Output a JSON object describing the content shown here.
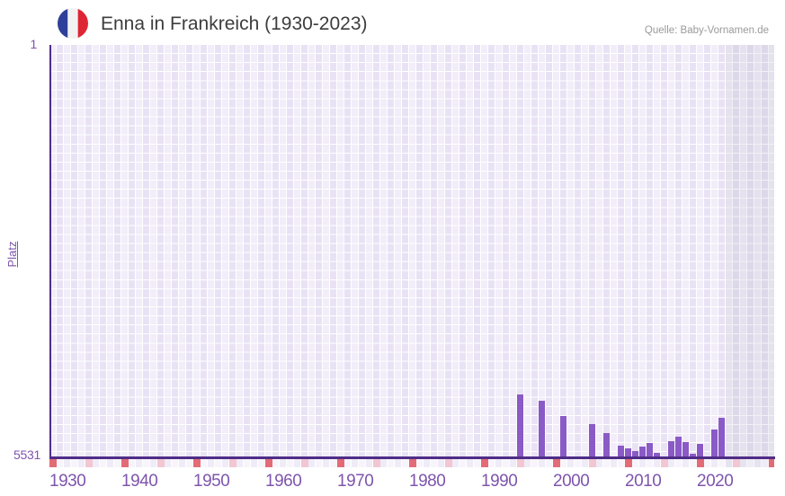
{
  "header": {
    "title": "Enna in Frankreich (1930-2023)",
    "source": "Quelle: Baby-Vornamen.de",
    "flag_icon": "france-flag-icon"
  },
  "y_axis": {
    "label": "Platz",
    "top_label": "1",
    "bottom_label": "5531"
  },
  "chart_data": {
    "type": "bar",
    "title": "Enna in Frankreich (1930-2023)",
    "xlabel": "",
    "ylabel": "Platz",
    "x_range": [
      1930,
      2030
    ],
    "data_end_year": 2023,
    "y_axis": {
      "top_value": 1,
      "bottom_value": 5531,
      "inverted": true
    },
    "x_ticks": [
      1930,
      1940,
      1950,
      1960,
      1970,
      1980,
      1990,
      2000,
      2010,
      2020
    ],
    "points": [
      {
        "year": 1995,
        "rank": 4700
      },
      {
        "year": 1998,
        "rank": 4780
      },
      {
        "year": 2001,
        "rank": 4985
      },
      {
        "year": 2005,
        "rank": 5095
      },
      {
        "year": 2007,
        "rank": 5215
      },
      {
        "year": 2009,
        "rank": 5385
      },
      {
        "year": 2010,
        "rank": 5420
      },
      {
        "year": 2011,
        "rank": 5460
      },
      {
        "year": 2012,
        "rank": 5400
      },
      {
        "year": 2013,
        "rank": 5350
      },
      {
        "year": 2014,
        "rank": 5485
      },
      {
        "year": 2016,
        "rank": 5325
      },
      {
        "year": 2017,
        "rank": 5265
      },
      {
        "year": 2018,
        "rank": 5340
      },
      {
        "year": 2019,
        "rank": 5500
      },
      {
        "year": 2020,
        "rank": 5360
      },
      {
        "year": 2022,
        "rank": 5170
      },
      {
        "year": 2023,
        "rank": 5010
      }
    ],
    "strip_marker_years_decade": [
      1930,
      1940,
      1950,
      1960,
      1970,
      1980,
      1990,
      2000,
      2010,
      2020,
      2030
    ],
    "strip_marker_years_half_decade": [
      1935,
      1945,
      1955,
      1965,
      1975,
      1985,
      1995,
      2005,
      2015,
      2025
    ],
    "grid": true,
    "legend": "none"
  },
  "colors": {
    "bar": "#8a5ac6",
    "axis_line": "#4f2d87",
    "tick_text": "#7e55ad",
    "title_text": "#3d3d3d",
    "source_text": "#9a9a9a",
    "marker_decade": "#e26b77",
    "marker_half_decade": "#f2c6d2",
    "flag_blue": "#2e3f99",
    "flag_white": "#f2f2f2",
    "flag_red": "#de2535"
  }
}
